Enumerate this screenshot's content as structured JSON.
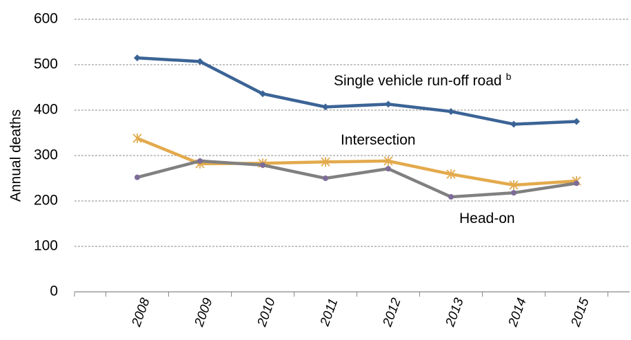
{
  "chart_data": {
    "type": "line",
    "y_label": "Annual deaths",
    "categories": [
      "2008",
      "2009",
      "2010",
      "2011",
      "2012",
      "2013",
      "2014",
      "2015"
    ],
    "series": [
      {
        "name": "Single vehicle run-off road",
        "note": "b",
        "color": "#3b6496",
        "marker": "diamond",
        "marker_color": "#3b6496",
        "values": [
          515,
          507,
          436,
          407,
          413,
          397,
          369,
          375
        ]
      },
      {
        "name": "Intersection",
        "color": "#e3aa4c",
        "marker": "asterisk",
        "marker_color": "#e3aa4c",
        "values": [
          338,
          282,
          283,
          286,
          288,
          259,
          235,
          244
        ]
      },
      {
        "name": "Head-on",
        "color": "#808080",
        "marker": "circle",
        "marker_color": "#7e6c98",
        "values": [
          252,
          288,
          279,
          250,
          271,
          209,
          218,
          239
        ]
      }
    ],
    "ylim": [
      0,
      600
    ],
    "yticks": [
      0,
      100,
      200,
      300,
      400,
      500,
      600
    ],
    "grid": true
  }
}
